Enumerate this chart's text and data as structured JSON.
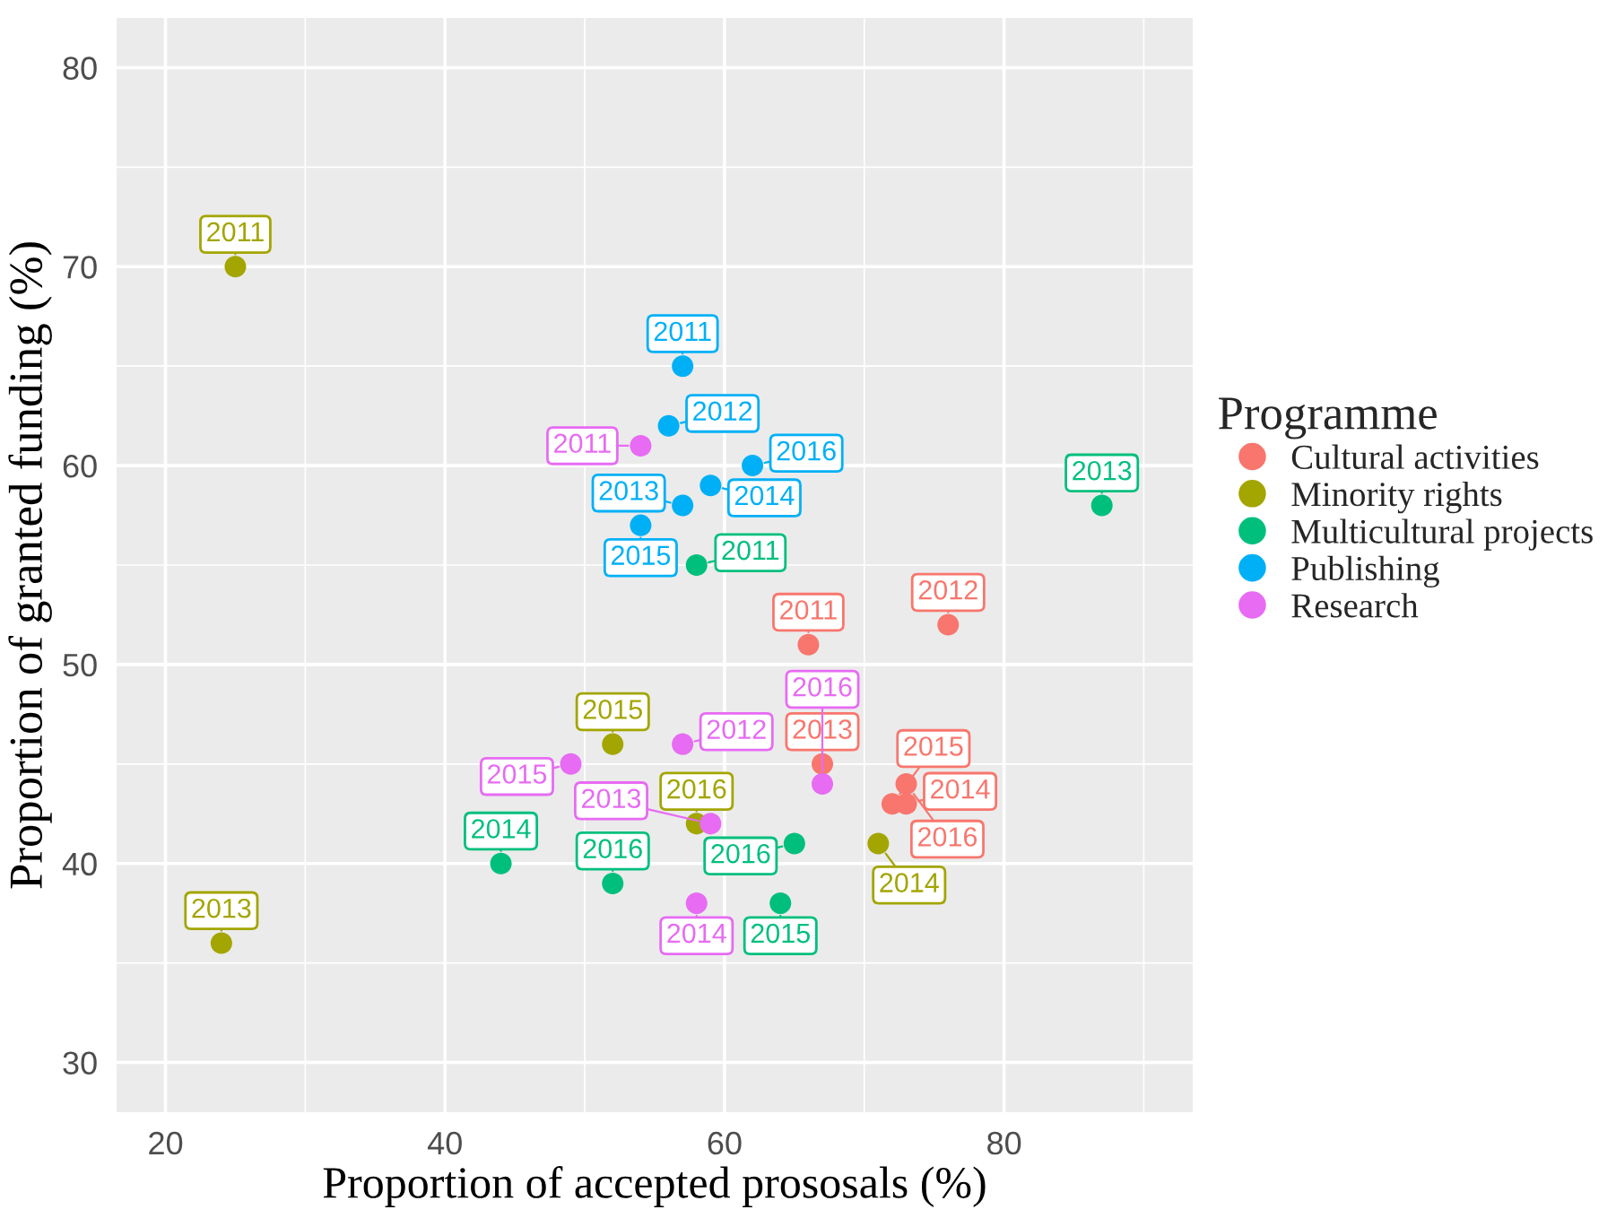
{
  "chart_data": {
    "type": "scatter",
    "xlabel": "Proportion of accepted prososals (%)",
    "ylabel": "Proportion of granted funding (%)",
    "legend_title": "Programme",
    "legend": "right",
    "grid": true,
    "marker": "circle",
    "xlim": [
      16.5,
      93.5
    ],
    "xticks": [
      20,
      40,
      60,
      80
    ],
    "ylim": [
      27.5,
      82.5
    ],
    "yticks": [
      30,
      40,
      50,
      60,
      70,
      80
    ],
    "series": [
      {
        "name": "Cultural activities",
        "color": "#f8766d",
        "x": [
          66,
          76,
          67,
          73,
          72,
          73
        ],
        "values": [
          51,
          52,
          45,
          43,
          43,
          44
        ]
      },
      {
        "name": "Minority rights",
        "color": "#a3a500",
        "x": [
          25,
          24,
          71,
          52,
          58
        ],
        "values": [
          70,
          36,
          41,
          46,
          42
        ]
      },
      {
        "name": "Multicultural projects",
        "color": "#00bf7d",
        "x": [
          58,
          87,
          44,
          64,
          52,
          65
        ],
        "values": [
          55,
          58,
          40,
          38,
          39,
          41
        ]
      },
      {
        "name": "Publishing",
        "color": "#00b0f6",
        "x": [
          57,
          56,
          57,
          59,
          54,
          62
        ],
        "values": [
          65,
          62,
          58,
          59,
          57,
          60
        ]
      },
      {
        "name": "Research",
        "color": "#e76bf3",
        "x": [
          54,
          57,
          59,
          58,
          49,
          67
        ],
        "values": [
          61,
          46,
          42,
          38,
          45,
          44
        ]
      }
    ],
    "annotations": [
      {
        "text": "2011",
        "x": 66,
        "y": 51
      },
      {
        "text": "2012",
        "x": 76,
        "y": 52
      },
      {
        "text": "2013",
        "x": 67,
        "y": 45
      },
      {
        "text": "2014",
        "x": 73,
        "y": 43
      },
      {
        "text": "2015",
        "x": 72,
        "y": 43
      },
      {
        "text": "2016",
        "x": 73,
        "y": 44
      },
      {
        "text": "2011",
        "x": 25,
        "y": 70
      },
      {
        "text": "2013",
        "x": 24,
        "y": 36
      },
      {
        "text": "2014",
        "x": 71,
        "y": 41
      },
      {
        "text": "2015",
        "x": 52,
        "y": 46
      },
      {
        "text": "2016",
        "x": 58,
        "y": 42
      },
      {
        "text": "2011",
        "x": 58,
        "y": 55
      },
      {
        "text": "2013",
        "x": 87,
        "y": 58
      },
      {
        "text": "2014",
        "x": 44,
        "y": 40
      },
      {
        "text": "2015",
        "x": 64,
        "y": 38
      },
      {
        "text": "2016",
        "x": 52,
        "y": 39
      },
      {
        "text": "2016",
        "x": 65,
        "y": 41
      },
      {
        "text": "2011",
        "x": 57,
        "y": 65
      },
      {
        "text": "2012",
        "x": 56,
        "y": 62
      },
      {
        "text": "2013",
        "x": 57,
        "y": 58
      },
      {
        "text": "2014",
        "x": 59,
        "y": 59
      },
      {
        "text": "2015",
        "x": 54,
        "y": 57
      },
      {
        "text": "2016",
        "x": 62,
        "y": 60
      },
      {
        "text": "2011",
        "x": 54,
        "y": 61
      },
      {
        "text": "2012",
        "x": 57,
        "y": 46
      },
      {
        "text": "2013",
        "x": 59,
        "y": 42
      },
      {
        "text": "2014",
        "x": 58,
        "y": 38
      },
      {
        "text": "2015",
        "x": 49,
        "y": 45
      },
      {
        "text": "2016",
        "x": 67,
        "y": 44
      }
    ]
  }
}
